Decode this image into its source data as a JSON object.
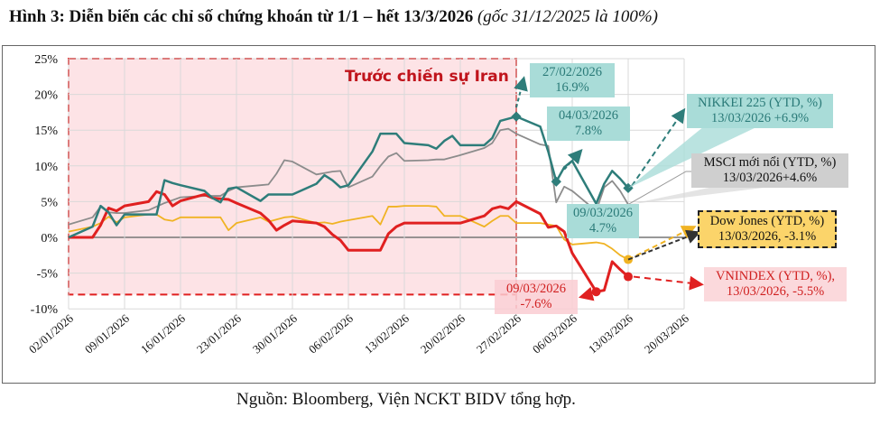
{
  "title": {
    "main": "Hình 3: Diễn biến các chỉ số chứng khoán từ 1/1 – hết 13/3/2026 ",
    "note": "(gốc 31/12/2025 là 100%)"
  },
  "source": "Nguồn: Bloomberg, Viện NCKT BIDV tổng hợp.",
  "chart_data": {
    "type": "line",
    "title": "Hình 3: Diễn biến các chỉ số chứng khoán từ 1/1 – hết 13/3/2026 (gốc 31/12/2025 là 100%)",
    "xlabel": "",
    "ylabel": "",
    "ylim": [
      -10,
      25
    ],
    "xlim": [
      "2026-01-02",
      "2026-03-20"
    ],
    "grid": true,
    "y_ticks": [
      "25%",
      "20%",
      "15%",
      "10%",
      "5%",
      "0%",
      "-5%",
      "-10%"
    ],
    "x_ticks": [
      "02/01/2026",
      "09/01/2026",
      "16/01/2026",
      "23/01/2026",
      "30/01/2026",
      "06/02/2026",
      "13/02/2026",
      "20/02/2026",
      "27/02/2026",
      "06/03/2026",
      "13/03/2026",
      "20/03/2026"
    ],
    "series": [
      {
        "key": "nikkei",
        "color": "#2e7d7a",
        "width": 2.5,
        "x": [
          "01-02",
          "01-05",
          "01-06",
          "01-07",
          "01-08",
          "01-09",
          "01-12",
          "01-13",
          "01-14",
          "01-15",
          "01-16",
          "01-19",
          "01-20",
          "01-21",
          "01-22",
          "01-23",
          "01-26",
          "01-27",
          "01-28",
          "01-29",
          "01-30",
          "02-02",
          "02-03",
          "02-04",
          "02-05",
          "02-06",
          "02-09",
          "02-10",
          "02-11",
          "02-12",
          "02-13",
          "02-16",
          "02-17",
          "02-18",
          "02-19",
          "02-20",
          "02-23",
          "02-24",
          "02-25",
          "02-26",
          "02-27",
          "03-02",
          "03-03",
          "03-04",
          "03-05",
          "03-06",
          "03-09",
          "03-10",
          "03-11",
          "03-12",
          "03-13"
        ],
        "y": [
          0,
          1.5,
          4.4,
          3.5,
          1.7,
          3.2,
          3.2,
          3.2,
          8.0,
          7.6,
          7.3,
          6.5,
          5.5,
          4.9,
          6.8,
          7.0,
          5.1,
          6.0,
          6.0,
          6.0,
          6.0,
          7.5,
          8.7,
          8.0,
          7.0,
          7.3,
          12.0,
          14.5,
          14.5,
          14.5,
          13.2,
          12.9,
          12.4,
          13.5,
          14.2,
          12.9,
          12.9,
          13.9,
          16.3,
          16.6,
          16.9,
          15.5,
          12.0,
          7.8,
          9.8,
          10.7,
          4.7,
          7.5,
          9.3,
          8.2,
          6.9
        ]
      },
      {
        "key": "msci",
        "color": "#8c8c8c",
        "width": 1.8,
        "x": [
          "01-02",
          "01-05",
          "01-06",
          "01-07",
          "01-08",
          "01-09",
          "01-12",
          "01-13",
          "01-14",
          "01-15",
          "01-16",
          "01-19",
          "01-20",
          "01-21",
          "01-22",
          "01-23",
          "01-26",
          "01-27",
          "01-28",
          "01-29",
          "01-30",
          "02-02",
          "02-03",
          "02-04",
          "02-05",
          "02-06",
          "02-09",
          "02-10",
          "02-11",
          "02-12",
          "02-13",
          "02-16",
          "02-17",
          "02-18",
          "02-19",
          "02-20",
          "02-23",
          "02-24",
          "02-25",
          "02-26",
          "02-27",
          "03-02",
          "03-03",
          "03-04",
          "03-05",
          "03-06",
          "03-09",
          "03-10",
          "03-11",
          "03-12",
          "03-13"
        ],
        "y": [
          1.8,
          2.8,
          4.3,
          3.5,
          3.4,
          3.4,
          3.8,
          4.3,
          4.8,
          5.2,
          5.6,
          5.8,
          5.8,
          5.8,
          6.5,
          7.0,
          7.3,
          7.4,
          8.9,
          10.8,
          10.6,
          8.8,
          9.0,
          9.2,
          9.3,
          7.0,
          8.5,
          10.0,
          11.3,
          11.8,
          10.7,
          10.8,
          10.9,
          10.9,
          11.2,
          11.5,
          12.5,
          13.2,
          15.0,
          15.2,
          14.5,
          13.0,
          12.8,
          4.9,
          7.1,
          6.5,
          3.7,
          7.0,
          7.9,
          6.5,
          4.6
        ]
      },
      {
        "key": "dow",
        "color": "#f0b323",
        "width": 1.8,
        "x": [
          "01-02",
          "01-05",
          "01-06",
          "01-07",
          "01-08",
          "01-09",
          "01-12",
          "01-13",
          "01-14",
          "01-15",
          "01-16",
          "01-19",
          "01-20",
          "01-21",
          "01-22",
          "01-23",
          "01-26",
          "01-27",
          "01-28",
          "01-29",
          "01-30",
          "02-02",
          "02-03",
          "02-04",
          "02-05",
          "02-06",
          "02-09",
          "02-10",
          "02-11",
          "02-12",
          "02-13",
          "02-16",
          "02-17",
          "02-18",
          "02-19",
          "02-20",
          "02-23",
          "02-24",
          "02-25",
          "02-26",
          "02-27",
          "03-02",
          "03-03",
          "03-04",
          "03-05",
          "03-06",
          "03-09",
          "03-10",
          "03-11",
          "03-12",
          "03-13"
        ],
        "y": [
          0.8,
          1.5,
          2.0,
          2.9,
          2.1,
          2.8,
          3.2,
          3.2,
          2.5,
          2.3,
          2.8,
          2.8,
          2.8,
          2.8,
          1.0,
          2.0,
          2.8,
          2.2,
          2.5,
          2.8,
          2.9,
          2.0,
          2.1,
          1.9,
          2.2,
          2.4,
          3.0,
          1.8,
          4.3,
          4.3,
          4.4,
          4.4,
          4.3,
          3.0,
          3.0,
          3.0,
          1.5,
          2.3,
          3.0,
          3.0,
          2.0,
          2.0,
          1.8,
          1.6,
          -0.3,
          -1.0,
          -0.7,
          -0.9,
          -1.6,
          -2.5,
          -3.1
        ]
      },
      {
        "key": "vnindex",
        "color": "#e02020",
        "width": 3,
        "x": [
          "01-02",
          "01-05",
          "01-06",
          "01-07",
          "01-08",
          "01-09",
          "01-12",
          "01-13",
          "01-14",
          "01-15",
          "01-16",
          "01-19",
          "01-20",
          "01-21",
          "01-22",
          "01-23",
          "01-26",
          "01-27",
          "01-28",
          "01-29",
          "01-30",
          "02-02",
          "02-03",
          "02-04",
          "02-05",
          "02-06",
          "02-09",
          "02-10",
          "02-11",
          "02-12",
          "02-13",
          "02-16",
          "02-17",
          "02-18",
          "02-19",
          "02-20",
          "02-23",
          "02-24",
          "02-25",
          "02-26",
          "02-27",
          "03-02",
          "03-03",
          "03-04",
          "03-05",
          "03-06",
          "03-09",
          "03-10",
          "03-11",
          "03-12",
          "03-13"
        ],
        "y": [
          0,
          0,
          1.7,
          4.1,
          3.7,
          4.4,
          5.0,
          6.4,
          6.0,
          4.4,
          5.1,
          6.0,
          5.5,
          5.4,
          5.3,
          4.8,
          3.4,
          2.4,
          1.0,
          1.7,
          2.3,
          2.0,
          1.5,
          0.4,
          -0.4,
          -1.8,
          -1.8,
          -1.8,
          0.5,
          1.5,
          2.0,
          2.0,
          2.0,
          2.0,
          2.0,
          2.0,
          3.0,
          4.0,
          4.3,
          4.0,
          5.0,
          3.3,
          1.4,
          1.6,
          0.8,
          -2.2,
          -7.6,
          -7.4,
          -3.4,
          -4.5,
          -5.5
        ]
      }
    ],
    "annotations": {
      "period_label": "Trước chiến sự Iran",
      "nikkei_peak": [
        "27/02/2026",
        "16.9%"
      ],
      "nikkei_0403": [
        "04/03/2026",
        "7.8%"
      ],
      "nikkei_0903": [
        "09/03/2026",
        "4.7%"
      ],
      "nikkei_legend": [
        "NIKKEI 225 (YTD, %)",
        "13/03/2026 +6.9%"
      ],
      "msci_legend": [
        "MSCI mới nổi (YTD, %)",
        "13/03/2026+4.6%"
      ],
      "dow_legend": [
        "Dow Jones (YTD, %)",
        "13/03/2026, -3.1%"
      ],
      "vni_legend": [
        "VNINDEX (YTD, %),",
        "13/03/2026, -5.5%"
      ],
      "vni_low": [
        "09/03/2026",
        "-7.6%"
      ]
    }
  }
}
